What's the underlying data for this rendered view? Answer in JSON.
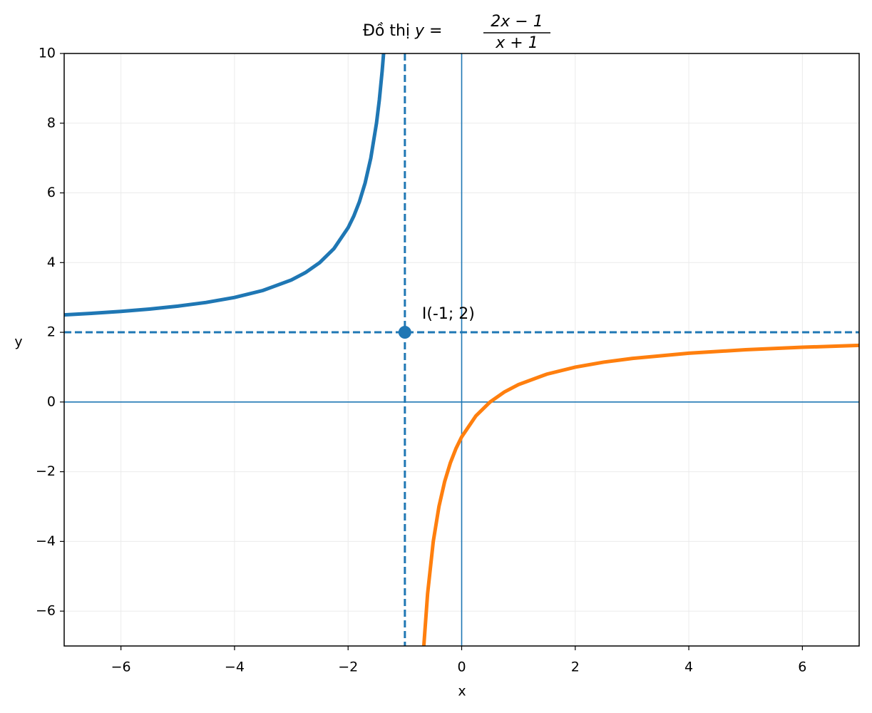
{
  "chart_data": {
    "type": "line",
    "title": "Đồ thị",
    "title_formula": {
      "lhs": "y =",
      "numerator": "2x − 1",
      "denominator": "x + 1"
    },
    "x_label": "x",
    "y_label": "y",
    "xlim": [
      -7,
      7
    ],
    "ylim": [
      -7,
      10
    ],
    "xticks": [
      {
        "value": -6,
        "label": "−6"
      },
      {
        "value": -4,
        "label": "−4"
      },
      {
        "value": -2,
        "label": "−2"
      },
      0,
      2,
      4,
      6
    ],
    "yticks": [
      {
        "value": -6,
        "label": "−6"
      },
      {
        "value": -4,
        "label": "−4"
      },
      {
        "value": -2,
        "label": "−2"
      },
      0,
      2,
      4,
      6,
      8,
      10
    ],
    "grid": true,
    "zero_lines": true,
    "series": [
      {
        "color": "#1f77b4",
        "x": [
          -7,
          -6.5,
          -6,
          -5.5,
          -5,
          -4.5,
          -4,
          -3.5,
          -3,
          -2.75,
          -2.5,
          -2.25,
          -2,
          -1.9,
          -1.8,
          -1.7,
          -1.6,
          -1.5,
          -1.45,
          -1.4,
          -1.375
        ],
        "values": [
          2.5,
          2.545,
          2.6,
          2.667,
          2.75,
          2.857,
          3,
          3.2,
          3.5,
          3.714,
          4,
          4.4,
          5,
          5.333,
          5.75,
          6.286,
          7,
          8,
          8.667,
          9.5,
          10
        ]
      },
      {
        "color": "#ff7f0e",
        "x": [
          -0.6667,
          -0.6,
          -0.5,
          -0.4,
          -0.3,
          -0.2,
          -0.1,
          0,
          0.25,
          0.5,
          0.75,
          1,
          1.5,
          2,
          2.5,
          3,
          4,
          5,
          6,
          7
        ],
        "values": [
          -7.0,
          -5.5,
          -4,
          -3,
          -2.286,
          -1.75,
          -1.333,
          -1,
          -0.4,
          0,
          0.286,
          0.5,
          0.8,
          1,
          1.143,
          1.25,
          1.4,
          1.5,
          1.571,
          1.625
        ]
      }
    ],
    "asymptotes": {
      "x": -1,
      "y": 2,
      "color": "#1f77b4"
    },
    "point": {
      "x": -1,
      "y": 2,
      "label": "I(-1; 2)",
      "color": "#1f77b4"
    }
  }
}
